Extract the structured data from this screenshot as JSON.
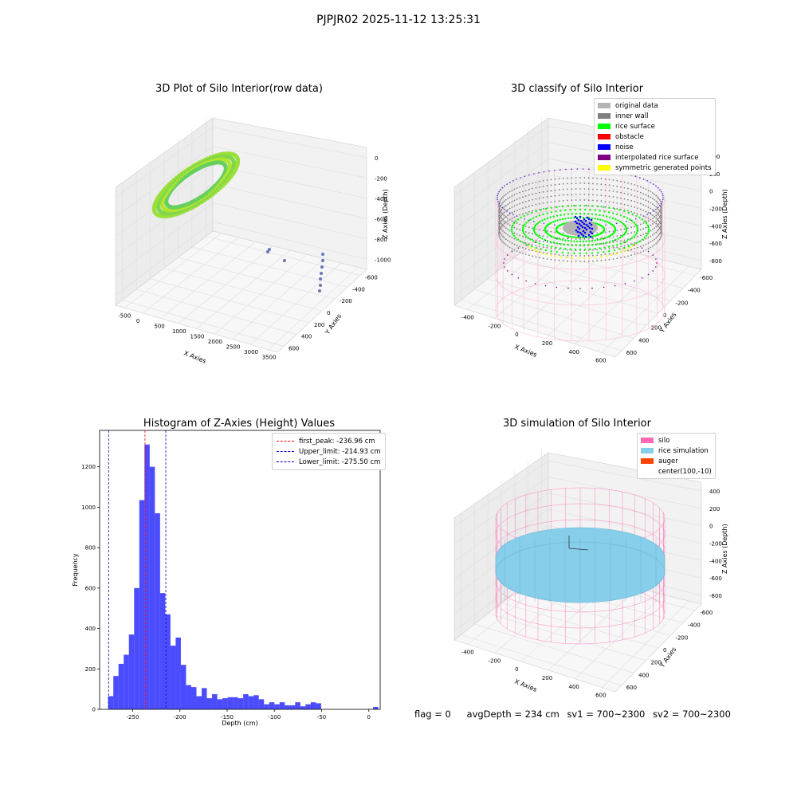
{
  "suptitle": "PJPJR02 2025-11-12 13:25:31",
  "raw3d": {
    "title": "3D Plot of Silo Interior(row data)",
    "xlabel": "X Axies",
    "ylabel": "Y Axies",
    "zlabel": "Z Axies (Depth)",
    "xticks": [
      "-500",
      "0",
      "500",
      "1000",
      "1500",
      "2000",
      "2500",
      "3000",
      "3500"
    ],
    "yticks": [
      "600",
      "400",
      "200",
      "0",
      "-200",
      "-400",
      "-600"
    ],
    "zticks": [
      "0",
      "-200",
      "-400",
      "-600",
      "-800",
      "-1000"
    ]
  },
  "classify3d": {
    "title": "3D classify of Silo Interior",
    "xlabel": "X Axies",
    "ylabel": "Y Axies",
    "zlabel": "Z Axies (Depth)",
    "xticks": [
      "-400",
      "-200",
      "0",
      "200",
      "400",
      "600"
    ],
    "yticks": [
      "600",
      "400",
      "200",
      "0",
      "-200",
      "-400",
      "-600"
    ],
    "zticks": [
      "400",
      "200",
      "0",
      "-200",
      "-400",
      "-600",
      "-800"
    ],
    "legend": [
      {
        "label": "original data",
        "color": "#b4b4b4"
      },
      {
        "label": "inner wall",
        "color": "#808080"
      },
      {
        "label": "rice surface",
        "color": "#00ff00"
      },
      {
        "label": "obstacle",
        "color": "#ff0000"
      },
      {
        "label": "noise",
        "color": "#0000ff"
      },
      {
        "label": "interpolated rice surface",
        "color": "#800080"
      },
      {
        "label": "symmetric generated points",
        "color": "#ffff00"
      }
    ]
  },
  "sim3d": {
    "title": "3D simulation of Silo Interior",
    "xlabel": "X Axies",
    "ylabel": "Y Axies",
    "zlabel": "Z Axies (Depth)",
    "xticks": [
      "-400",
      "-200",
      "0",
      "200",
      "400",
      "600"
    ],
    "yticks": [
      "600",
      "400",
      "200",
      "0",
      "-200",
      "-400",
      "-600"
    ],
    "zticks": [
      "400",
      "200",
      "0",
      "-200",
      "-400",
      "-600",
      "-800"
    ],
    "legend": [
      {
        "label": "silo",
        "color": "#ff69b4"
      },
      {
        "label": "rice simulation",
        "color": "#87ceeb"
      },
      {
        "label": "auger",
        "color": "#ff4500"
      },
      {
        "label": "center(100,-10)",
        "color": "#ffffff"
      }
    ]
  },
  "footer": {
    "flag": "flag = 0",
    "avg": "avgDepth = 234 cm",
    "sv1": "sv1 = 700~2300",
    "sv2": "sv2 = 700~2300"
  },
  "chart_data": [
    {
      "type": "scatter",
      "title": "3D Plot of Silo Interior(row data)",
      "xlabel": "X Axies",
      "ylabel": "Y Axies",
      "zlabel": "Z Axies (Depth)",
      "xlim": [
        -600,
        3600
      ],
      "ylim": [
        -650,
        650
      ],
      "zlim": [
        -1100,
        50
      ],
      "grid": true
    },
    {
      "type": "scatter",
      "title": "3D classify of Silo Interior",
      "xlabel": "X Axies",
      "ylabel": "Y Axies",
      "zlabel": "Z Axies (Depth)",
      "grid": true,
      "legend": "top-right"
    },
    {
      "type": "bar",
      "title": "Histogram of Z-Axies (Height) Values",
      "xlabel": "Depth (cm)",
      "ylabel": "Frequency",
      "xlim": [
        -285,
        12
      ],
      "ylim": [
        0,
        1380
      ],
      "xticks": [
        -250,
        -200,
        -150,
        -100,
        -50,
        0
      ],
      "yticks": [
        0,
        200,
        400,
        600,
        800,
        1000,
        1200
      ],
      "bin_start": -276,
      "bin_width": 5.5,
      "values": [
        65,
        165,
        225,
        270,
        370,
        600,
        1035,
        1310,
        1200,
        970,
        575,
        470,
        315,
        355,
        220,
        120,
        110,
        65,
        105,
        55,
        75,
        50,
        55,
        60,
        60,
        55,
        75,
        65,
        70,
        50,
        25,
        35,
        25,
        35,
        20,
        20,
        35,
        15,
        25,
        35,
        30,
        0,
        0,
        0,
        0,
        0,
        0,
        0,
        0,
        0,
        0,
        12
      ],
      "color": "#0000ff",
      "lines": [
        {
          "label": "first_peak: -236.96 cm",
          "value": -236.96,
          "color": "#ff0000"
        },
        {
          "label": "Upper_limit: -214.93 cm",
          "value": -214.93,
          "color": "#0000cc"
        },
        {
          "label": "Lower_limit: -275.50 cm",
          "value": -275.5,
          "color": "#0000cc"
        }
      ],
      "legend": "top-right",
      "grid": false
    },
    {
      "type": "scatter",
      "title": "3D simulation of Silo Interior",
      "xlabel": "X Axies",
      "ylabel": "Y Axies",
      "zlabel": "Z Axies (Depth)",
      "grid": true,
      "legend": "top-right"
    }
  ]
}
